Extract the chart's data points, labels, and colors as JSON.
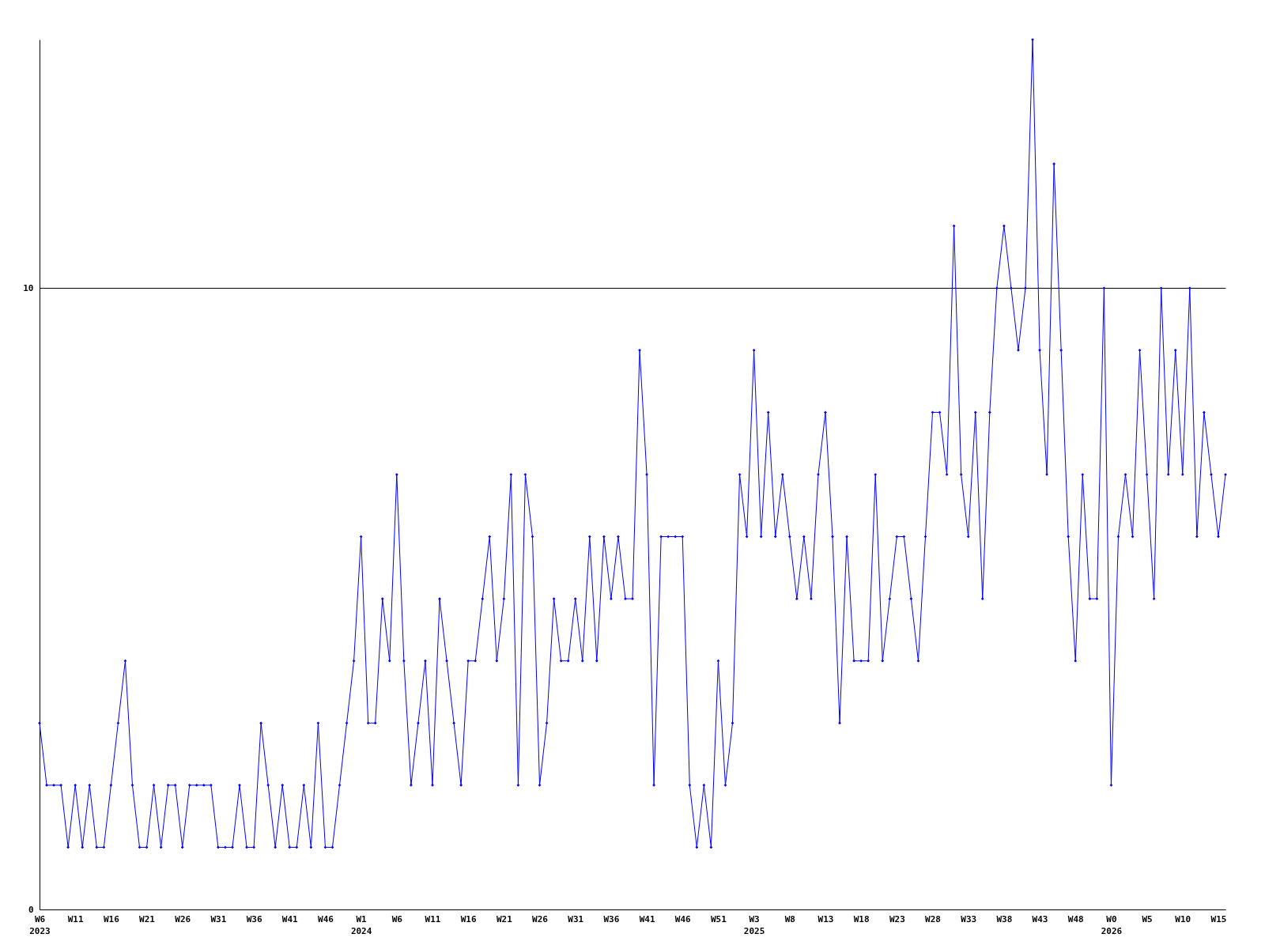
{
  "chart_data": {
    "type": "line",
    "categories": [
      "W6\n2023",
      null,
      null,
      null,
      null,
      "W11",
      null,
      null,
      null,
      null,
      "W16",
      null,
      null,
      null,
      null,
      "W21",
      null,
      null,
      null,
      null,
      "W26",
      null,
      null,
      null,
      null,
      "W31",
      null,
      null,
      null,
      null,
      "W36",
      null,
      null,
      null,
      null,
      "W41",
      null,
      null,
      null,
      null,
      "W46",
      null,
      null,
      null,
      null,
      "W1\n2024",
      null,
      null,
      null,
      null,
      "W6",
      null,
      null,
      null,
      null,
      "W11",
      null,
      null,
      null,
      null,
      "W16",
      null,
      null,
      null,
      null,
      "W21",
      null,
      null,
      null,
      null,
      "W26",
      null,
      null,
      null,
      null,
      "W31",
      null,
      null,
      null,
      null,
      "W36",
      null,
      null,
      null,
      null,
      "W41",
      null,
      null,
      null,
      null,
      "W46",
      null,
      null,
      null,
      null,
      "W51",
      null,
      null,
      null,
      null,
      "W3\n2025",
      null,
      null,
      null,
      null,
      "W8",
      null,
      null,
      null,
      null,
      "W13",
      null,
      null,
      null,
      null,
      "W18",
      null,
      null,
      null,
      null,
      "W23",
      null,
      null,
      null,
      null,
      "W28",
      null,
      null,
      null,
      null,
      "W33",
      null,
      null,
      null,
      null,
      "W38",
      null,
      null,
      null,
      null,
      "W43",
      null,
      null,
      null,
      null,
      "W48",
      null,
      null,
      null,
      null,
      "W0\n2026",
      null,
      null,
      null,
      null,
      "W5",
      null,
      null,
      null,
      null,
      "W10",
      null,
      null,
      null,
      null,
      "W15",
      null
    ],
    "series": [
      {
        "color": "#0000ff",
        "values": [
          3,
          2,
          2,
          2,
          1,
          2,
          1,
          2,
          1,
          1,
          2,
          3,
          4,
          2,
          1,
          1,
          2,
          1,
          2,
          2,
          1,
          2,
          2,
          2,
          2,
          1,
          1,
          1,
          2,
          1,
          1,
          3,
          2,
          1,
          2,
          1,
          1,
          2,
          1,
          3,
          1,
          1,
          2,
          3,
          4,
          6,
          3,
          3,
          5,
          4,
          7,
          4,
          2,
          3,
          4,
          2,
          5,
          4,
          3,
          2,
          4,
          4,
          5,
          6,
          4,
          5,
          7,
          2,
          7,
          6,
          2,
          3,
          5,
          4,
          4,
          5,
          4,
          6,
          4,
          6,
          5,
          6,
          5,
          5,
          9,
          7,
          2,
          6,
          6,
          6,
          6,
          2,
          1,
          2,
          1,
          4,
          2,
          3,
          7,
          6,
          9,
          6,
          8,
          6,
          7,
          6,
          5,
          6,
          5,
          7,
          8,
          6,
          3,
          6,
          4,
          4,
          4,
          7,
          4,
          5,
          6,
          6,
          5,
          4,
          6,
          8,
          8,
          7,
          11,
          7,
          6,
          8,
          5,
          8,
          10,
          11,
          10,
          9,
          10,
          14,
          9,
          7,
          12,
          9,
          6,
          4,
          7,
          5,
          5,
          10,
          2,
          6,
          7,
          6,
          9,
          7,
          5,
          10,
          7,
          9,
          7,
          10,
          6,
          8,
          7,
          6,
          7
        ]
      }
    ],
    "ylim": [
      0,
      14
    ],
    "yticks": [
      0,
      10
    ],
    "grid": "y",
    "marker": "diamond",
    "line_style": "solid"
  }
}
